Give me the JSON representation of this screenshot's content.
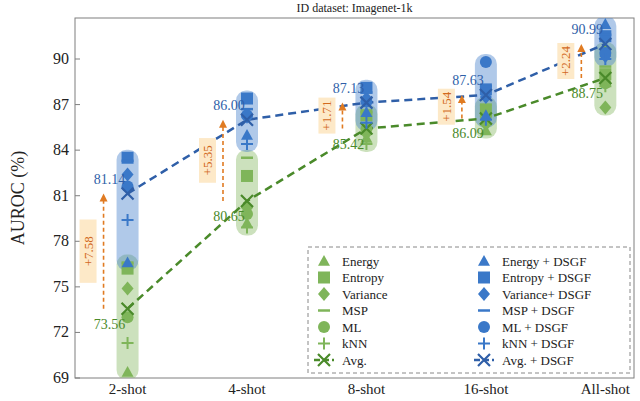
{
  "chart_data": {
    "type": "line",
    "title": "ID dataset: Imagenet-1k",
    "y_label": "AUROC (%)",
    "categories": [
      "2-shot",
      "4-shot",
      "8-shot",
      "16-shot",
      "All-shot"
    ],
    "ylim": [
      69,
      92.7
    ],
    "yticks": [
      69,
      72,
      75,
      78,
      81,
      84,
      87,
      90
    ],
    "grid": false,
    "legend": "bottom-right",
    "annotations": [
      "+7.58",
      "+5.35",
      "+1.71",
      "+1.54",
      "+2.24"
    ],
    "series": [
      {
        "name": "Energy",
        "type": "scatter",
        "marker": "triangle",
        "color": "#7fb55a",
        "values": [
          69.4,
          79.2,
          84.8,
          85.3,
          90.6
        ]
      },
      {
        "name": "Entropy",
        "type": "scatter",
        "marker": "square",
        "color": "#7fb55a",
        "values": [
          76.2,
          82.3,
          86.3,
          86.6,
          89.0
        ]
      },
      {
        "name": "Variance",
        "type": "scatter",
        "marker": "diamond",
        "color": "#7fb55a",
        "values": [
          74.9,
          80.2,
          85.1,
          85.7,
          86.8
        ]
      },
      {
        "name": "MSP",
        "type": "scatter",
        "marker": "dash",
        "color": "#7fb55a",
        "values": [
          76.6,
          83.5,
          86.5,
          87.0,
          89.5
        ]
      },
      {
        "name": "ML",
        "type": "scatter",
        "marker": "circle",
        "color": "#7fb55a",
        "values": [
          73.0,
          79.8,
          85.4,
          86.2,
          88.4
        ]
      },
      {
        "name": "kNN",
        "type": "scatter",
        "marker": "plus",
        "color": "#7fb55a",
        "values": [
          71.3,
          78.9,
          84.4,
          85.7,
          88.2
        ]
      },
      {
        "name": "Avg.",
        "type": "line",
        "marker": "x",
        "line_style": "dashed",
        "color": "#4a8a2a",
        "data_labels": true,
        "values": [
          73.56,
          80.65,
          85.42,
          86.09,
          88.75
        ]
      },
      {
        "name": "Energy + DSGF",
        "type": "scatter",
        "marker": "triangle",
        "color": "#3a78c8",
        "values": [
          76.6,
          85.0,
          86.5,
          86.3,
          92.3
        ]
      },
      {
        "name": "Entropy + DSGF",
        "type": "scatter",
        "marker": "square",
        "color": "#3a78c8",
        "values": [
          83.5,
          87.4,
          88.1,
          88.0,
          91.5
        ]
      },
      {
        "name": "Variance+ DSGF",
        "type": "scatter",
        "marker": "diamond",
        "color": "#3a78c8",
        "values": [
          82.4,
          86.2,
          87.4,
          87.5,
          90.2
        ]
      },
      {
        "name": "MSP + DSGF",
        "type": "scatter",
        "marker": "dash",
        "color": "#3a78c8",
        "values": [
          83.3,
          86.7,
          87.8,
          88.2,
          91.6
        ]
      },
      {
        "name": "ML + DSGF",
        "type": "scatter",
        "marker": "circle",
        "color": "#3a78c8",
        "values": [
          81.6,
          86.3,
          87.2,
          89.8,
          90.4
        ]
      },
      {
        "name": "kNN + DSGF",
        "type": "scatter",
        "marker": "plus",
        "color": "#3a78c8",
        "values": [
          79.4,
          84.4,
          85.8,
          86.0,
          90.0
        ]
      },
      {
        "name": "Avg. + DSGF",
        "type": "line",
        "marker": "x",
        "line_style": "dashed",
        "color": "#2f5fa8",
        "data_labels": true,
        "values": [
          81.14,
          86.0,
          87.13,
          87.63,
          90.99
        ],
        "value_labels": [
          "81.14",
          "86.00",
          "87.13",
          "87.63",
          "90.99"
        ]
      }
    ]
  }
}
